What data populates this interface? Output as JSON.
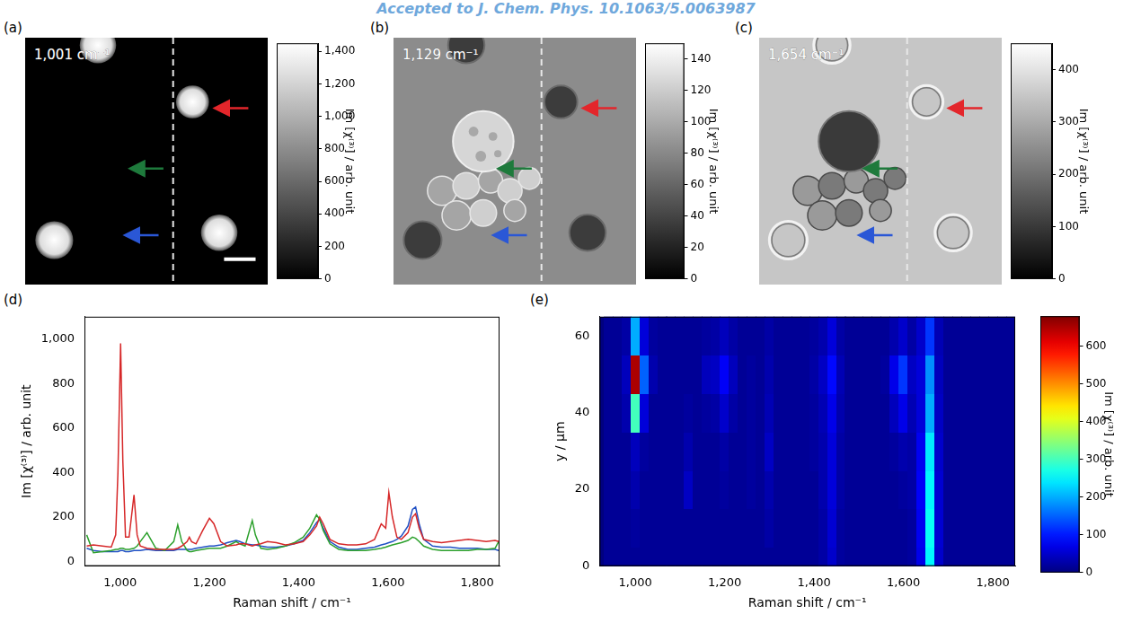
{
  "watermark": "Accepted to J. Chem. Phys. 10.1063/5.0063987",
  "images": [
    {
      "letter": "(a)",
      "label": "1,001 cm⁻¹",
      "colorbar": {
        "title": "Im [χ⁽³⁾] / arb. unit",
        "range": [
          0,
          1450
        ],
        "ticks": [
          0,
          200,
          400,
          600,
          800,
          {
            "value": 1000,
            "label": "1,000"
          },
          {
            "value": 1200,
            "label": "1,200"
          },
          {
            "value": 1400,
            "label": "1,400"
          }
        ]
      }
    },
    {
      "letter": "(b)",
      "label": "1,129 cm⁻¹",
      "colorbar": {
        "title": "Im [χ⁽³⁾] / arb. unit",
        "range": [
          0,
          150
        ],
        "ticks": [
          0,
          20,
          40,
          60,
          80,
          100,
          120,
          140
        ]
      }
    },
    {
      "letter": "(c)",
      "label": "1,654 cm⁻¹",
      "colorbar": {
        "title": "Im [χ⁽³⁾] / arb. unit",
        "range": [
          0,
          450
        ],
        "ticks": [
          0,
          100,
          200,
          300,
          400
        ]
      }
    }
  ],
  "chart_data": [
    {
      "panel": "(d)",
      "type": "line",
      "grid": false,
      "x_label": "Raman shift / cm⁻¹",
      "y_label": "Im [χ⁽³⁾] / arb. unit",
      "xlim": [
        920,
        1850
      ],
      "xticks": [
        {
          "value": 1000,
          "label": "1,000"
        },
        {
          "value": 1200,
          "label": "1,200"
        },
        {
          "value": 1400,
          "label": "1,400"
        },
        {
          "value": 1600,
          "label": "1,600"
        },
        {
          "value": 1800,
          "label": "1,800"
        }
      ],
      "ylim": [
        -20,
        1100
      ],
      "yticks": [
        0,
        200,
        400,
        600,
        800,
        {
          "value": 1000,
          "label": "1,000"
        }
      ],
      "x": [
        925,
        940,
        960,
        980,
        990,
        995,
        1001,
        1006,
        1012,
        1020,
        1031,
        1038,
        1045,
        1060,
        1080,
        1100,
        1120,
        1129,
        1138,
        1150,
        1155,
        1160,
        1170,
        1185,
        1200,
        1210,
        1225,
        1240,
        1260,
        1268,
        1280,
        1296,
        1303,
        1315,
        1330,
        1350,
        1370,
        1390,
        1410,
        1425,
        1440,
        1447,
        1455,
        1470,
        1490,
        1510,
        1530,
        1550,
        1570,
        1585,
        1595,
        1602,
        1610,
        1620,
        1630,
        1645,
        1655,
        1662,
        1670,
        1680,
        1700,
        1720,
        1740,
        1760,
        1780,
        1800,
        1820,
        1840,
        1848
      ],
      "series": [
        {
          "color": "#d62728",
          "values": [
            70,
            75,
            70,
            65,
            120,
            400,
            980,
            450,
            110,
            110,
            300,
            120,
            70,
            60,
            55,
            55,
            55,
            60,
            70,
            90,
            110,
            90,
            80,
            140,
            195,
            170,
            90,
            70,
            75,
            80,
            80,
            70,
            75,
            80,
            90,
            85,
            75,
            80,
            90,
            120,
            160,
            200,
            170,
            100,
            80,
            75,
            75,
            80,
            100,
            170,
            150,
            310,
            200,
            110,
            100,
            130,
            200,
            215,
            150,
            100,
            90,
            85,
            90,
            95,
            100,
            95,
            90,
            95,
            90
          ]
        },
        {
          "color": "#2ca02c",
          "values": [
            120,
            40,
            45,
            50,
            55,
            55,
            60,
            60,
            55,
            55,
            60,
            70,
            90,
            130,
            60,
            50,
            90,
            165,
            90,
            50,
            45,
            45,
            50,
            55,
            60,
            60,
            60,
            70,
            90,
            80,
            70,
            185,
            120,
            60,
            55,
            60,
            70,
            85,
            110,
            150,
            210,
            190,
            140,
            80,
            55,
            50,
            50,
            50,
            55,
            60,
            65,
            70,
            75,
            80,
            85,
            95,
            110,
            105,
            90,
            70,
            55,
            50,
            50,
            50,
            50,
            55,
            55,
            60,
            90
          ]
        },
        {
          "color": "#1f4fc4",
          "values": [
            60,
            50,
            45,
            45,
            45,
            45,
            50,
            50,
            45,
            45,
            50,
            50,
            50,
            55,
            50,
            50,
            50,
            55,
            55,
            55,
            55,
            55,
            60,
            65,
            70,
            70,
            75,
            85,
            95,
            90,
            80,
            75,
            75,
            70,
            65,
            65,
            70,
            80,
            95,
            130,
            175,
            190,
            150,
            90,
            65,
            55,
            55,
            60,
            65,
            75,
            80,
            85,
            90,
            100,
            115,
            160,
            235,
            245,
            170,
            100,
            70,
            65,
            65,
            60,
            60,
            60,
            55,
            55,
            50
          ]
        }
      ]
    },
    {
      "panel": "(e)",
      "type": "heatmap",
      "grid": false,
      "x_label": "Raman shift / cm⁻¹",
      "y_label": "y / µm",
      "xlim": [
        920,
        1850
      ],
      "xticks": [
        {
          "value": 1000,
          "label": "1,000"
        },
        {
          "value": 1200,
          "label": "1,200"
        },
        {
          "value": 1400,
          "label": "1,400"
        },
        {
          "value": 1600,
          "label": "1,600"
        },
        {
          "value": 1800,
          "label": "1,800"
        }
      ],
      "ylim": [
        0,
        65
      ],
      "yticks": [
        0,
        20,
        40,
        60
      ],
      "x": [
        940,
        960,
        980,
        1000,
        1020,
        1040,
        1060,
        1080,
        1100,
        1120,
        1140,
        1160,
        1180,
        1200,
        1220,
        1240,
        1260,
        1280,
        1300,
        1320,
        1340,
        1360,
        1380,
        1400,
        1420,
        1440,
        1460,
        1480,
        1500,
        1520,
        1540,
        1560,
        1580,
        1600,
        1620,
        1640,
        1660,
        1680,
        1700,
        1720,
        1740,
        1760,
        1780,
        1800,
        1820,
        1840
      ],
      "y": [
        0,
        10,
        20,
        30,
        40,
        50,
        60
      ],
      "z": [
        [
          15,
          15,
          15,
          15,
          15,
          15,
          15,
          15,
          15,
          15,
          15,
          15,
          15,
          15,
          15,
          15,
          15,
          15,
          15,
          15,
          15,
          15,
          15,
          15,
          25,
          50,
          20,
          15,
          15,
          15,
          15,
          15,
          15,
          15,
          20,
          70,
          250,
          50,
          15,
          15,
          15,
          15,
          15,
          15,
          15,
          15
        ],
        [
          15,
          15,
          15,
          20,
          15,
          15,
          15,
          15,
          15,
          15,
          15,
          15,
          15,
          15,
          15,
          15,
          15,
          15,
          25,
          15,
          15,
          15,
          15,
          15,
          25,
          55,
          20,
          15,
          15,
          15,
          15,
          15,
          15,
          15,
          20,
          75,
          260,
          55,
          15,
          15,
          15,
          15,
          15,
          15,
          15,
          15
        ],
        [
          15,
          15,
          15,
          30,
          15,
          15,
          15,
          15,
          15,
          45,
          15,
          15,
          15,
          20,
          15,
          15,
          20,
          15,
          30,
          15,
          15,
          15,
          15,
          15,
          30,
          60,
          25,
          15,
          15,
          15,
          15,
          15,
          15,
          20,
          25,
          80,
          250,
          55,
          15,
          15,
          15,
          15,
          15,
          15,
          15,
          15
        ],
        [
          15,
          15,
          15,
          40,
          20,
          15,
          15,
          15,
          15,
          30,
          15,
          15,
          15,
          25,
          15,
          15,
          20,
          15,
          45,
          15,
          15,
          15,
          15,
          20,
          30,
          60,
          25,
          15,
          15,
          15,
          15,
          15,
          20,
          30,
          25,
          75,
          240,
          50,
          15,
          15,
          15,
          15,
          15,
          15,
          15,
          15
        ],
        [
          15,
          15,
          30,
          300,
          60,
          15,
          15,
          15,
          15,
          20,
          15,
          20,
          25,
          50,
          25,
          15,
          20,
          15,
          35,
          15,
          15,
          15,
          15,
          20,
          35,
          70,
          30,
          15,
          15,
          15,
          15,
          15,
          40,
          70,
          35,
          60,
          200,
          45,
          15,
          15,
          15,
          15,
          15,
          15,
          15,
          15
        ],
        [
          15,
          15,
          40,
          650,
          150,
          30,
          15,
          15,
          15,
          15,
          15,
          40,
          45,
          80,
          40,
          15,
          20,
          15,
          30,
          15,
          15,
          15,
          15,
          25,
          45,
          90,
          35,
          15,
          15,
          15,
          15,
          20,
          70,
          120,
          45,
          60,
          180,
          40,
          15,
          15,
          15,
          15,
          15,
          15,
          15,
          15
        ],
        [
          15,
          15,
          25,
          200,
          60,
          20,
          15,
          15,
          15,
          15,
          15,
          20,
          25,
          40,
          25,
          15,
          15,
          15,
          25,
          15,
          15,
          15,
          15,
          20,
          30,
          60,
          25,
          15,
          15,
          15,
          15,
          15,
          30,
          50,
          25,
          50,
          120,
          35,
          15,
          15,
          15,
          15,
          15,
          15,
          15,
          15
        ]
      ],
      "colorbar": {
        "title": "Im [χ⁽³⁾] / arb. unit",
        "range": [
          0,
          680
        ],
        "ticks": [
          0,
          100,
          200,
          300,
          400,
          500,
          600
        ]
      }
    }
  ]
}
